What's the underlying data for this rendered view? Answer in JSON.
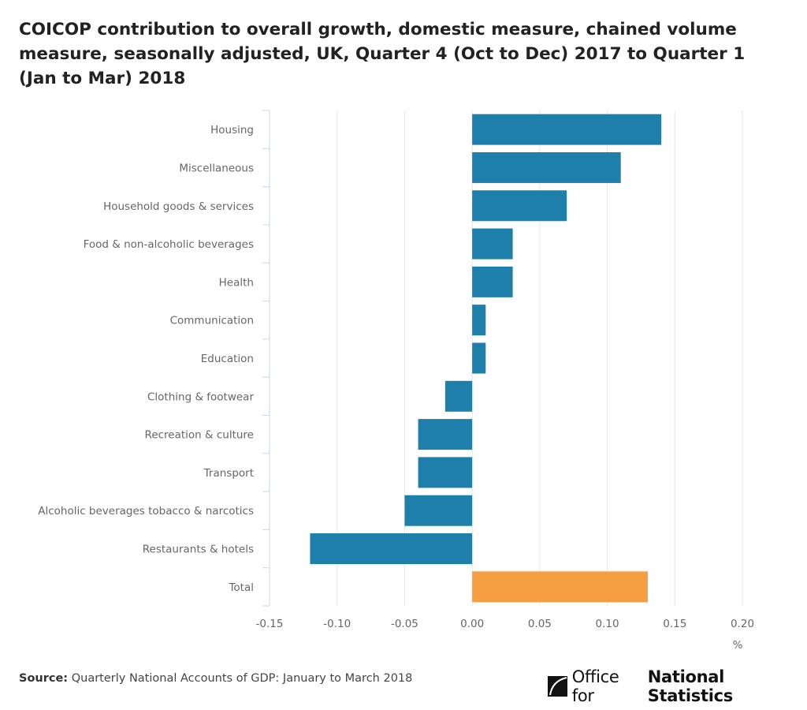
{
  "chart_data": {
    "type": "bar",
    "orientation": "horizontal",
    "title": "COICOP contribution to overall growth, domestic measure, chained volume measure, seasonally adjusted, UK, Quarter 4 (Oct to Dec) 2017 to Quarter 1 (Jan to Mar) 2018",
    "categories": [
      "Housing",
      "Miscellaneous",
      "Household goods & services",
      "Food & non-alcoholic beverages",
      "Health",
      "Communication",
      "Education",
      "Clothing & footwear",
      "Recreation & culture",
      "Transport",
      "Alcoholic beverages tobacco & narcotics",
      "Restaurants & hotels",
      "Total"
    ],
    "values": [
      0.14,
      0.11,
      0.07,
      0.03,
      0.03,
      0.01,
      0.01,
      -0.02,
      -0.04,
      -0.04,
      -0.05,
      -0.12,
      0.13
    ],
    "highlight": "Total",
    "xlabel": "%",
    "xlim": [
      -0.15,
      0.2
    ],
    "xticks": [
      "-0.15",
      "-0.10",
      "-0.05",
      "0.00",
      "0.05",
      "0.10",
      "0.15",
      "0.20"
    ],
    "grid": true,
    "colors": {
      "bar": "#1f7fab",
      "highlight": "#f49d41"
    }
  },
  "source": {
    "label": "Source:",
    "text": "Quarterly National Accounts of GDP: January to March 2018"
  },
  "logo": {
    "light": "Office for",
    "bold": "National Statistics"
  }
}
